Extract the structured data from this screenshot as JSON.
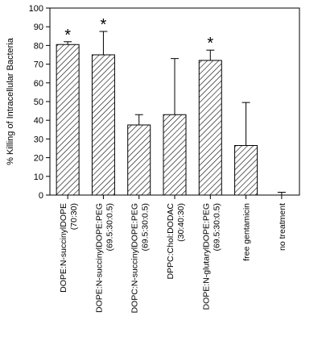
{
  "chart_data": {
    "type": "bar",
    "ylabel": "% Killing of Intracellular Bacteria",
    "xlabel": "",
    "title": "",
    "ylim": [
      0,
      100
    ],
    "yticks": [
      0,
      10,
      20,
      30,
      40,
      50,
      60,
      70,
      80,
      90,
      100
    ],
    "grid": false,
    "bar_pattern": "diagonal-hatch",
    "categories": [
      {
        "line1": "DOPE:N-succinylDOPE",
        "line2": "(70:30)"
      },
      {
        "line1": "DOPE:N-succinylDOPE:PEG",
        "line2": "(69.5:30:0.5)"
      },
      {
        "line1": "DOPC:N-succinylDOPE:PEG",
        "line2": "(69.5:30:0.5)"
      },
      {
        "line1": "DPPC:Chol:DODAC",
        "line2": "(30:40:30)"
      },
      {
        "line1": "DOPE:N-glutarylDOPE:PEG",
        "line2": "(69.5:30:0.5)"
      },
      {
        "line1": "free gentamicin",
        "line2": ""
      },
      {
        "line1": "no treatment",
        "line2": ""
      }
    ],
    "values": [
      80.5,
      75,
      37.5,
      43,
      72,
      26.5,
      0
    ],
    "errors": [
      1.5,
      12.5,
      5.5,
      30,
      5.5,
      23,
      1.5
    ],
    "significance_marker": "*",
    "significant": [
      true,
      true,
      false,
      false,
      true,
      false,
      false
    ]
  }
}
